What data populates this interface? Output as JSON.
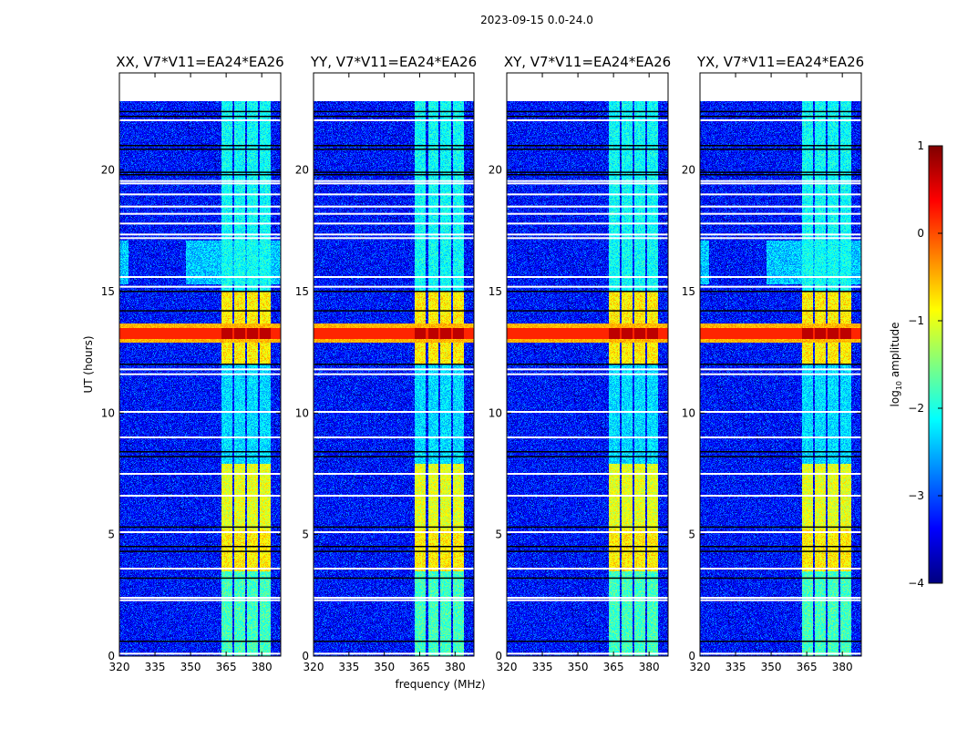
{
  "chart_data": {
    "type": "heatmap",
    "suptitle": "2023-09-15 0.0-24.0",
    "xlabel": "frequency (MHz)",
    "ylabel": "UT (hours)",
    "xlim": [
      320,
      388
    ],
    "ylim": [
      0,
      24
    ],
    "xticks": [
      320,
      335,
      350,
      365,
      380
    ],
    "yticks": [
      0,
      5,
      10,
      15,
      20
    ],
    "data_time_end": 22.85,
    "panels": [
      {
        "title": "XX, V7*V11=EA24*EA26",
        "extra_green_15_17h": true
      },
      {
        "title": "YY, V7*V11=EA24*EA26",
        "extra_green_15_17h": false
      },
      {
        "title": "XY, V7*V11=EA24*EA26",
        "extra_green_15_17h": false
      },
      {
        "title": "YX, V7*V11=EA24*EA26",
        "extra_green_15_17h": true
      }
    ],
    "background_log_amplitude": -3.3,
    "rfi_columns_mhz": [
      [
        363,
        367.7
      ],
      [
        368.5,
        373
      ],
      [
        373.8,
        378.4
      ],
      [
        379.2,
        383.8
      ]
    ],
    "rfi_column_levels": [
      {
        "t": [
          0,
          3.5
        ],
        "level": -1.8
      },
      {
        "t": [
          3.5,
          5.2
        ],
        "level": -0.8
      },
      {
        "t": [
          5.2,
          7.9
        ],
        "level": -1.0
      },
      {
        "t": [
          7.9,
          12.0
        ],
        "level": -2.3
      },
      {
        "t": [
          12.0,
          15.0
        ],
        "level": -0.8
      },
      {
        "t": [
          15.0,
          22.85
        ],
        "level": -2.1
      }
    ],
    "broadband_rfi": {
      "t": [
        12.9,
        13.7
      ],
      "level": -0.5,
      "core_t": [
        13.05,
        13.5
      ],
      "core_level": 0.2,
      "core_in_columns_level": 0.7
    },
    "flagged_white_hours": [
      22.05,
      19.55,
      19.45,
      19.0,
      18.5,
      18.2,
      17.8,
      17.35,
      17.2,
      15.6,
      15.2,
      11.8,
      11.6,
      10.05,
      9.0,
      7.5,
      6.6,
      5.1,
      3.6,
      2.4,
      2.3,
      0.1
    ],
    "flagged_black_hours": [
      22.4,
      22.2,
      21.0,
      20.85,
      19.9,
      19.8,
      15.0,
      14.2,
      12.0,
      8.4,
      8.2,
      5.3,
      4.5,
      4.3,
      3.2,
      0.6
    ],
    "colorbar": {
      "label": "log10 amplitude",
      "label_main": "log",
      "label_sub": "10",
      "label_rest": " amplitude",
      "range": [
        -4,
        1
      ],
      "ticks": [
        1,
        0,
        -1,
        -2,
        -3,
        -4
      ],
      "tick_labels": [
        "1",
        "0",
        "−1",
        "−2",
        "−3",
        "−4"
      ],
      "colormap": "jet"
    }
  }
}
